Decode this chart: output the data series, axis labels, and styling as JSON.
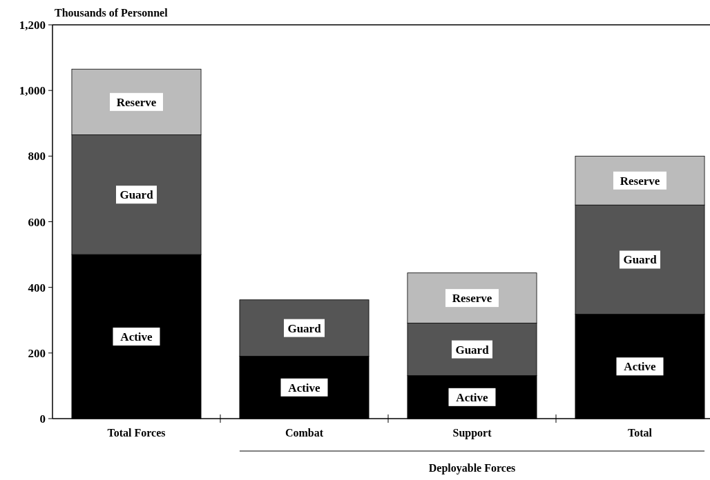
{
  "chart_data": {
    "type": "bar",
    "stacked": true,
    "ylabel": "Thousands of Personnel",
    "categories": [
      "Total Forces",
      "Combat",
      "Support",
      "Total"
    ],
    "series": [
      {
        "name": "Active",
        "color": "#000000",
        "values": [
          500,
          190,
          131,
          318
        ]
      },
      {
        "name": "Guard",
        "color": "#555555",
        "values": [
          365,
          172,
          160,
          333
        ]
      },
      {
        "name": "Reserve",
        "color": "#bbbbbb",
        "values": [
          200,
          null,
          153,
          149
        ]
      }
    ],
    "ylim": [
      0,
      1200
    ],
    "yticks": [
      0,
      {
        "value": 200,
        "label": "200"
      },
      {
        "value": 400,
        "label": "400"
      },
      {
        "value": 600,
        "label": "600"
      },
      {
        "value": 800,
        "label": "800"
      },
      {
        "value": 1000,
        "label": "1,000"
      },
      {
        "value": 1200,
        "label": "1,200"
      }
    ],
    "annotations": [
      "Deployable Forces"
    ],
    "grid": false,
    "legend": false
  }
}
